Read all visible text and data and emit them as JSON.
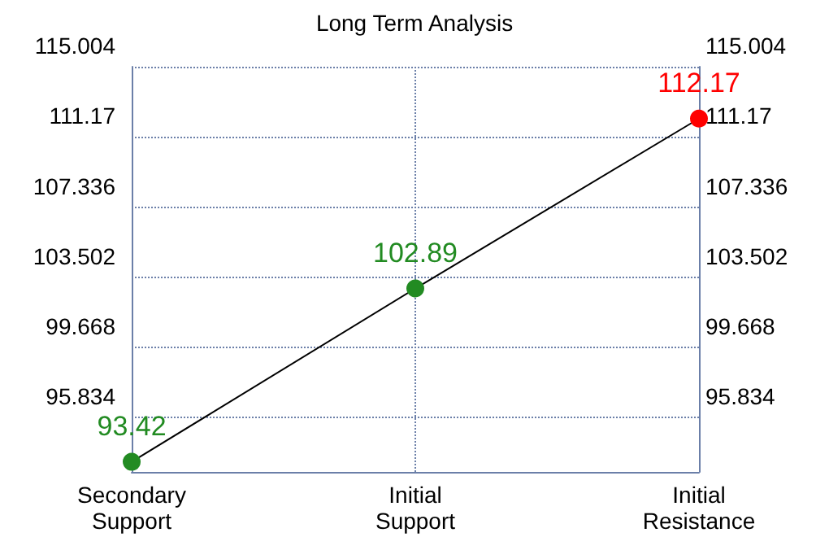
{
  "chart_data": {
    "type": "line",
    "title": "Long Term Analysis",
    "categories": [
      "Secondary\nSupport",
      "Initial\nSupport",
      "Initial\nResistance"
    ],
    "series": [
      {
        "color": "#000000",
        "colors": [
          "#228b22",
          "#228b22",
          "#ff0000"
        ],
        "values": [
          93.42,
          102.89,
          112.17
        ]
      }
    ],
    "data_labels": true,
    "ylim": [
      92.87,
      115.004
    ],
    "yticks": [
      95.834,
      99.668,
      103.502,
      107.336,
      111.17,
      115.004
    ],
    "y2lim": [
      92.87,
      115.004
    ],
    "y2ticks": [
      95.834,
      99.668,
      103.502,
      107.336,
      111.17,
      115.004
    ],
    "grid": true,
    "marker": "circle",
    "line_style": "solid"
  }
}
